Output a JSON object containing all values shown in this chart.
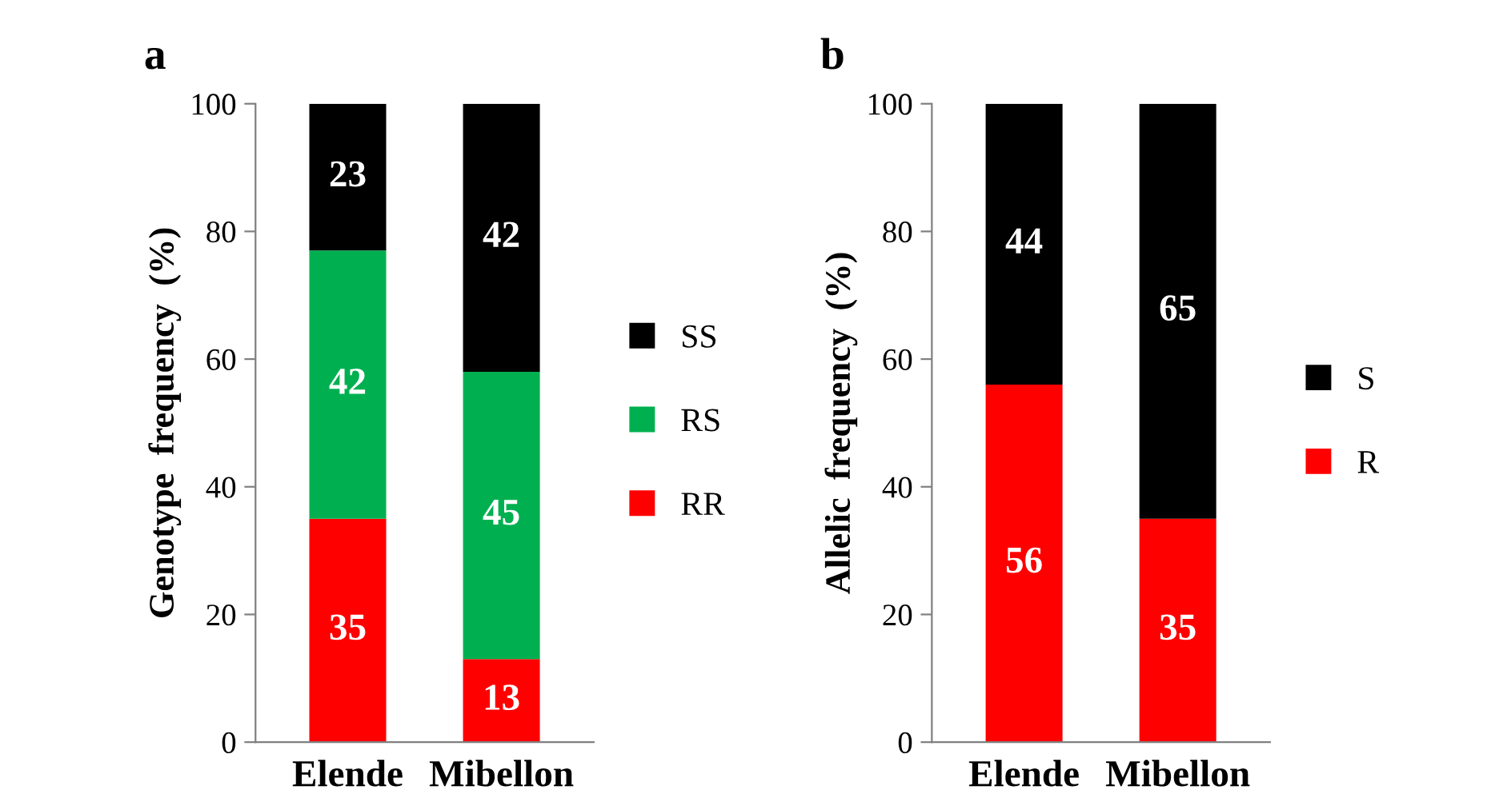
{
  "chart_data": [
    {
      "type": "bar",
      "title": "a",
      "ylabel": "Genotype  frequency  (%)",
      "categories": [
        "Elende",
        "Mibellon"
      ],
      "stacked": true,
      "data_labels": true,
      "legend": "right",
      "grid": false,
      "ylim": [
        0,
        100
      ],
      "yticks": [
        0,
        20,
        40,
        60,
        80,
        100
      ],
      "series": [
        {
          "name": "RR",
          "color": "#ff0000",
          "values": [
            35,
            13
          ]
        },
        {
          "name": "RS",
          "color": "#00b050",
          "values": [
            42,
            45
          ]
        },
        {
          "name": "SS",
          "color": "#000000",
          "values": [
            23,
            42
          ]
        }
      ]
    },
    {
      "type": "bar",
      "title": "b",
      "ylabel": "Allelic  frequency  (%)",
      "categories": [
        "Elende",
        "Mibellon"
      ],
      "stacked": true,
      "data_labels": true,
      "legend": "right",
      "grid": false,
      "ylim": [
        0,
        100
      ],
      "yticks": [
        0,
        20,
        40,
        60,
        80,
        100
      ],
      "series": [
        {
          "name": "R",
          "color": "#ff0000",
          "values": [
            56,
            35
          ]
        },
        {
          "name": "S",
          "color": "#000000",
          "values": [
            44,
            65
          ]
        }
      ]
    }
  ]
}
